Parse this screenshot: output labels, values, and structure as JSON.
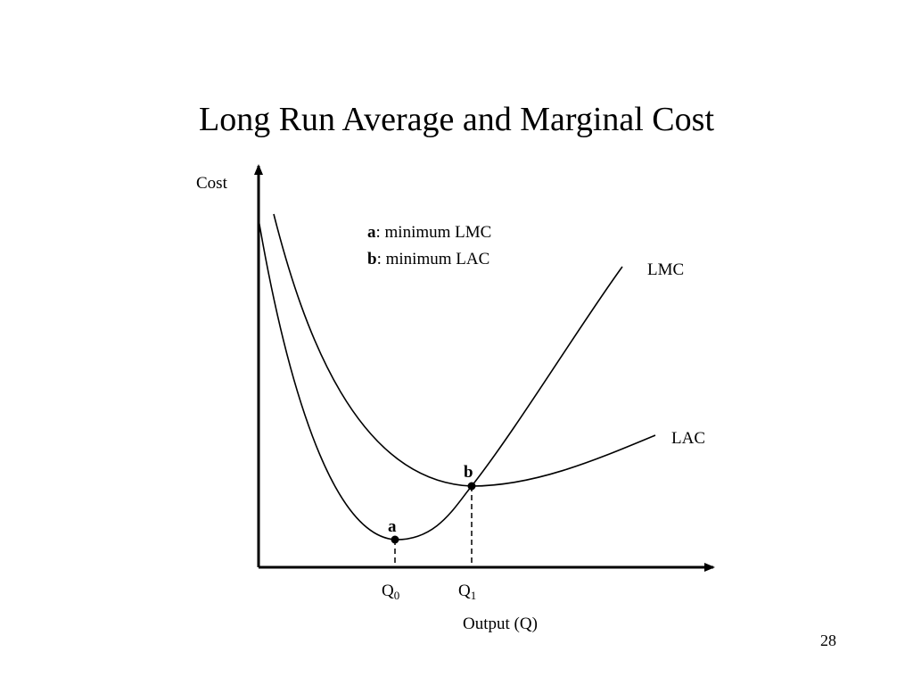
{
  "slide": {
    "title": "Long Run Average and Marginal Cost",
    "page_number": "28"
  },
  "axes": {
    "y_label": "Cost",
    "x_label": "Output (Q)"
  },
  "legend": {
    "a_key": "a",
    "a_text": ": minimum LMC",
    "b_key": "b",
    "b_text": ": minimum LAC"
  },
  "curves": {
    "lmc_label": "LMC",
    "lac_label": "LAC"
  },
  "points": {
    "a_label": "a",
    "b_label": "b"
  },
  "ticks": {
    "q0_main": "Q",
    "q0_sub": "0",
    "q1_main": "Q",
    "q1_sub": "1"
  },
  "colors": {
    "ink": "#000000",
    "background": "#ffffff"
  }
}
